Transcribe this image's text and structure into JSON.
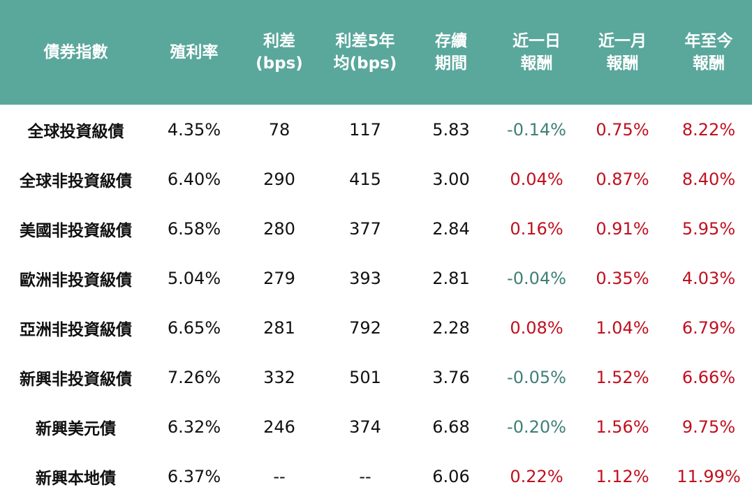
{
  "header": {
    "columns": [
      "債券指數",
      "殖利率",
      "利差\n(bps)",
      "利差5年\n均(bps)",
      "存續\n期間",
      "近一日\n報酬",
      "近一月\n報酬",
      "年至今\n報酬"
    ]
  },
  "colors": {
    "header_bg": "#5aa79c",
    "positive": "#c0101f",
    "negative": "#3f7f75"
  },
  "rows": [
    {
      "name": "全球投資級債",
      "yield": "4.35%",
      "spread": "78",
      "spread5y": "117",
      "duration": "5.83",
      "d1": "-0.14%",
      "m1": "0.75%",
      "ytd": "8.22%"
    },
    {
      "name": "全球非投資級債",
      "yield": "6.40%",
      "spread": "290",
      "spread5y": "415",
      "duration": "3.00",
      "d1": "0.04%",
      "m1": "0.87%",
      "ytd": "8.40%"
    },
    {
      "name": "美國非投資級債",
      "yield": "6.58%",
      "spread": "280",
      "spread5y": "377",
      "duration": "2.84",
      "d1": "0.16%",
      "m1": "0.91%",
      "ytd": "5.95%"
    },
    {
      "name": "歐洲非投資級債",
      "yield": "5.04%",
      "spread": "279",
      "spread5y": "393",
      "duration": "2.81",
      "d1": "-0.04%",
      "m1": "0.35%",
      "ytd": "4.03%"
    },
    {
      "name": "亞洲非投資級債",
      "yield": "6.65%",
      "spread": "281",
      "spread5y": "792",
      "duration": "2.28",
      "d1": "0.08%",
      "m1": "1.04%",
      "ytd": "6.79%"
    },
    {
      "name": "新興非投資級債",
      "yield": "7.26%",
      "spread": "332",
      "spread5y": "501",
      "duration": "3.76",
      "d1": "-0.05%",
      "m1": "1.52%",
      "ytd": "6.66%"
    },
    {
      "name": "新興美元債",
      "yield": "6.32%",
      "spread": "246",
      "spread5y": "374",
      "duration": "6.68",
      "d1": "-0.20%",
      "m1": "1.56%",
      "ytd": "9.75%"
    },
    {
      "name": "新興本地債",
      "yield": "6.37%",
      "spread": "--",
      "spread5y": "--",
      "duration": "6.06",
      "d1": "0.22%",
      "m1": "1.12%",
      "ytd": "11.99%"
    }
  ]
}
